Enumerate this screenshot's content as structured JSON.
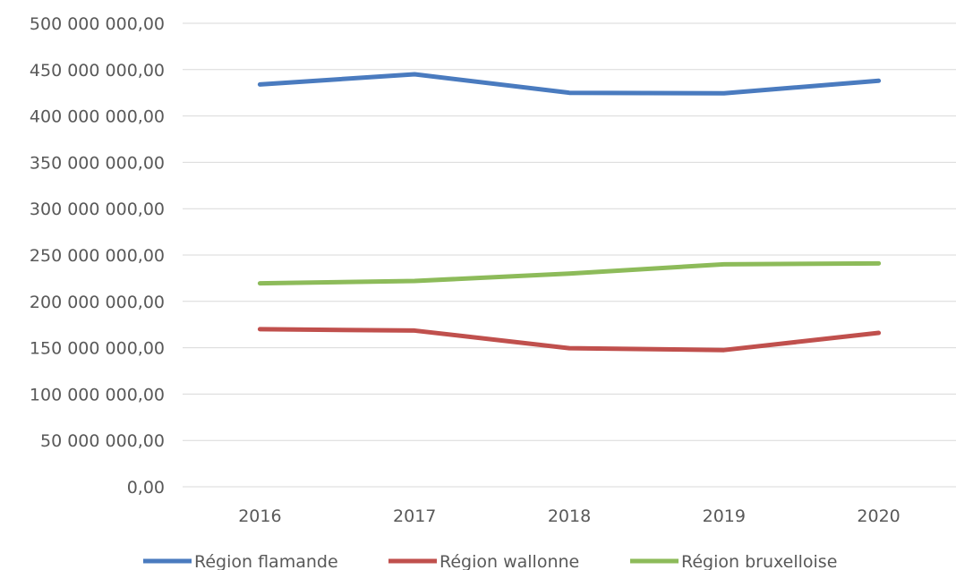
{
  "chart_data": {
    "type": "line",
    "categories": [
      "2016",
      "2017",
      "2018",
      "2019",
      "2020"
    ],
    "ylim": [
      0,
      500000000
    ],
    "ytick_labels": [
      "0,00",
      "50 000 000,00",
      "100 000 000,00",
      "150 000 000,00",
      "200 000 000,00",
      "250 000 000,00",
      "300 000 000,00",
      "350 000 000,00",
      "400 000 000,00",
      "450 000 000,00",
      "500 000 000,00"
    ],
    "grid": true,
    "legend": "bottom",
    "series": [
      {
        "name": "Région flamande",
        "color": "#4a7bbf",
        "values": [
          434000000,
          445000000,
          425000000,
          424500000,
          438000000
        ]
      },
      {
        "name": "Région wallonne",
        "color": "#c0504d",
        "values": [
          170000000,
          168500000,
          149500000,
          147500000,
          166000000
        ]
      },
      {
        "name": "Région bruxelloise",
        "color": "#8dbb5a",
        "values": [
          219500000,
          222000000,
          230000000,
          240000000,
          241000000
        ]
      }
    ]
  }
}
